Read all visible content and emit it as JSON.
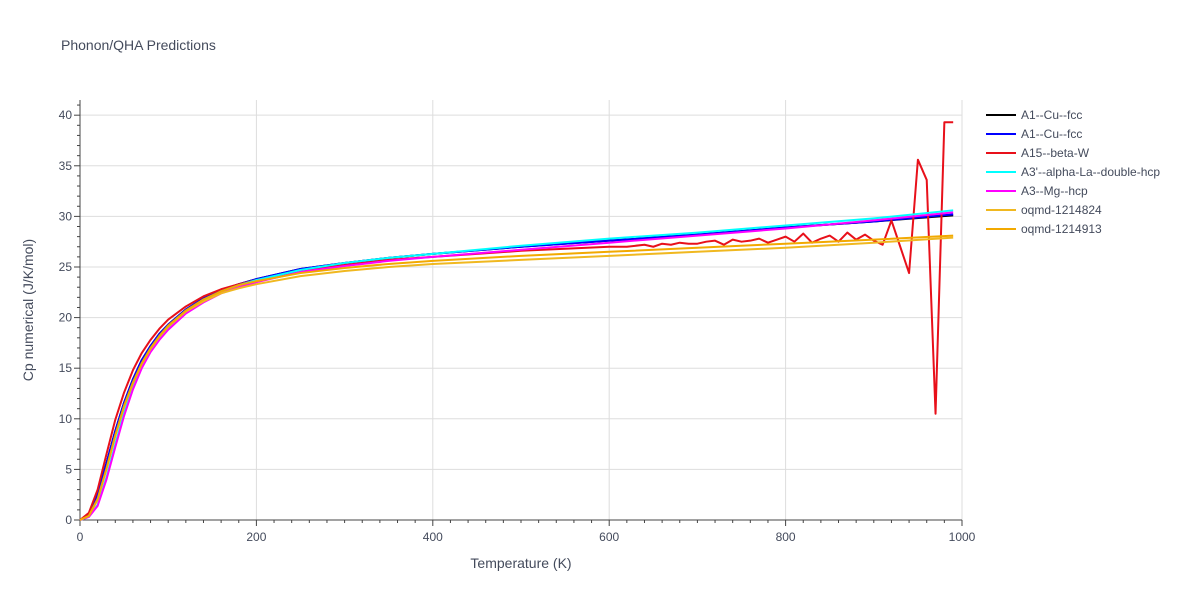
{
  "chart_data": {
    "type": "line",
    "title": "Phonon/QHA Predictions",
    "xlabel": "Temperature (K)",
    "ylabel": "Cp numerical (J/K/mol)",
    "xlim": [
      0,
      1000
    ],
    "ylim": [
      0,
      41.5
    ],
    "xticks": [
      0,
      200,
      400,
      600,
      800,
      1000
    ],
    "yticks": [
      0,
      5,
      10,
      15,
      20,
      25,
      30,
      35,
      40
    ],
    "grid": true,
    "legend_position": "top-right",
    "series": [
      {
        "name": "A1--Cu--fcc",
        "color": "#000000",
        "x": [
          0,
          10,
          20,
          30,
          40,
          50,
          60,
          70,
          80,
          90,
          100,
          120,
          140,
          160,
          180,
          200,
          250,
          300,
          350,
          400,
          500,
          600,
          700,
          800,
          900,
          990
        ],
        "y": [
          0,
          0.5,
          2.5,
          5.6,
          8.8,
          11.6,
          13.9,
          15.8,
          17.2,
          18.4,
          19.3,
          20.8,
          21.9,
          22.7,
          23.3,
          23.8,
          24.8,
          25.4,
          25.9,
          26.3,
          27.0,
          27.6,
          28.2,
          28.9,
          29.5,
          30.1
        ]
      },
      {
        "name": "A1--Cu--fcc",
        "color": "#0000ff",
        "x": [
          0,
          10,
          20,
          30,
          40,
          50,
          60,
          70,
          80,
          90,
          100,
          120,
          140,
          160,
          180,
          200,
          250,
          300,
          350,
          400,
          500,
          600,
          700,
          800,
          900,
          990
        ],
        "y": [
          0,
          0.5,
          2.5,
          5.6,
          8.8,
          11.6,
          13.9,
          15.8,
          17.2,
          18.4,
          19.3,
          20.8,
          21.9,
          22.7,
          23.3,
          23.8,
          24.8,
          25.4,
          25.9,
          26.3,
          27.0,
          27.6,
          28.2,
          28.9,
          29.5,
          30.2
        ]
      },
      {
        "name": "A15--beta-W",
        "color": "#e8101a",
        "x": [
          0,
          10,
          20,
          30,
          40,
          50,
          60,
          70,
          80,
          90,
          100,
          120,
          140,
          160,
          180,
          200,
          250,
          300,
          350,
          400,
          450,
          500,
          550,
          600,
          620,
          640,
          650,
          660,
          670,
          680,
          690,
          700,
          710,
          720,
          730,
          740,
          750,
          760,
          770,
          780,
          790,
          800,
          810,
          820,
          830,
          840,
          850,
          860,
          870,
          880,
          890,
          900,
          910,
          920,
          930,
          940,
          950,
          960,
          970,
          980,
          990
        ],
        "y": [
          0,
          0.7,
          3.0,
          6.5,
          9.9,
          12.6,
          14.8,
          16.5,
          17.8,
          18.9,
          19.8,
          21.1,
          22.1,
          22.8,
          23.3,
          23.7,
          24.6,
          25.2,
          25.7,
          26.0,
          26.3,
          26.6,
          26.8,
          27.0,
          27.0,
          27.2,
          27.0,
          27.3,
          27.2,
          27.4,
          27.3,
          27.3,
          27.5,
          27.6,
          27.2,
          27.7,
          27.5,
          27.6,
          27.8,
          27.4,
          27.7,
          28.0,
          27.5,
          28.3,
          27.4,
          27.8,
          28.1,
          27.5,
          28.4,
          27.7,
          28.2,
          27.6,
          27.2,
          29.6,
          27.0,
          24.4,
          35.6,
          33.6,
          10.5,
          39.3,
          39.3
        ]
      },
      {
        "name": "A3'--alpha-La--double-hcp",
        "color": "#00ffff",
        "x": [
          0,
          10,
          20,
          30,
          40,
          50,
          60,
          70,
          80,
          90,
          100,
          120,
          140,
          160,
          180,
          200,
          250,
          300,
          350,
          400,
          500,
          600,
          700,
          800,
          900,
          990
        ],
        "y": [
          0,
          0.3,
          1.5,
          4.2,
          7.5,
          10.6,
          13.2,
          15.2,
          16.8,
          18.0,
          19.0,
          20.6,
          21.7,
          22.6,
          23.2,
          23.7,
          24.7,
          25.4,
          25.9,
          26.3,
          27.1,
          27.8,
          28.4,
          29.1,
          29.8,
          30.6
        ]
      },
      {
        "name": "A3--Mg--hcp",
        "color": "#ff00ff",
        "x": [
          0,
          10,
          20,
          30,
          40,
          50,
          60,
          70,
          80,
          90,
          100,
          120,
          140,
          160,
          180,
          200,
          250,
          300,
          350,
          400,
          500,
          600,
          700,
          800,
          900,
          990
        ],
        "y": [
          0,
          0.3,
          1.4,
          4.0,
          7.2,
          10.3,
          12.9,
          15.0,
          16.6,
          17.8,
          18.8,
          20.4,
          21.5,
          22.4,
          23.0,
          23.5,
          24.5,
          25.1,
          25.6,
          26.0,
          26.7,
          27.4,
          28.1,
          28.8,
          29.6,
          30.4
        ]
      },
      {
        "name": "oqmd-1214824",
        "color": "#f0b820",
        "x": [
          0,
          10,
          20,
          30,
          40,
          50,
          60,
          70,
          80,
          90,
          100,
          120,
          140,
          160,
          180,
          200,
          250,
          300,
          350,
          400,
          500,
          600,
          700,
          800,
          900,
          990
        ],
        "y": [
          0,
          0.4,
          2.0,
          5.0,
          8.3,
          11.2,
          13.5,
          15.4,
          16.9,
          18.1,
          19.1,
          20.6,
          21.6,
          22.4,
          22.9,
          23.3,
          24.1,
          24.6,
          25.0,
          25.3,
          25.7,
          26.1,
          26.5,
          26.9,
          27.4,
          27.9
        ]
      },
      {
        "name": "oqmd-1214913",
        "color": "#f2a900",
        "x": [
          0,
          10,
          20,
          30,
          40,
          50,
          60,
          70,
          80,
          90,
          100,
          120,
          140,
          160,
          180,
          200,
          250,
          300,
          350,
          400,
          500,
          600,
          700,
          800,
          900,
          990
        ],
        "y": [
          0,
          0.4,
          2.1,
          5.1,
          8.4,
          11.3,
          13.6,
          15.5,
          17.0,
          18.2,
          19.2,
          20.7,
          21.8,
          22.6,
          23.2,
          23.6,
          24.4,
          24.9,
          25.3,
          25.6,
          26.1,
          26.5,
          26.9,
          27.3,
          27.7,
          28.1
        ]
      }
    ]
  }
}
